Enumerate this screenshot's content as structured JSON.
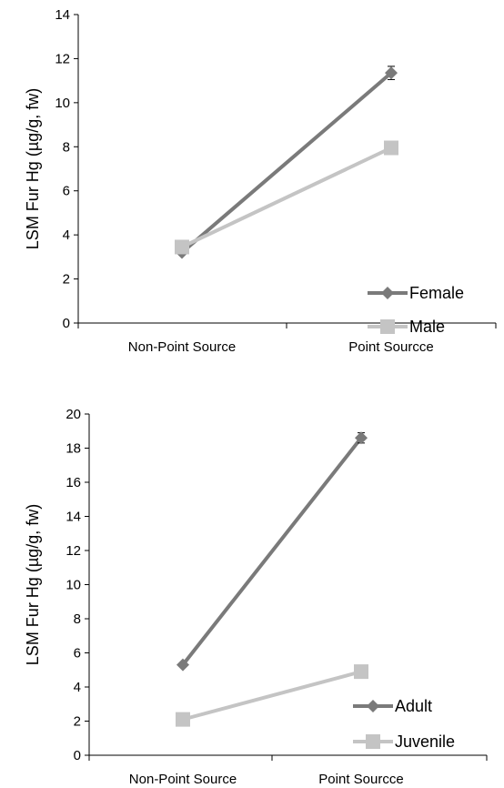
{
  "chart_data": [
    {
      "type": "line",
      "categories": [
        "Non-Point Source",
        "Point Sourcce"
      ],
      "ylabel": "LSM Fur Hg (µg/g, fw)",
      "ylim": [
        0,
        14
      ],
      "yticks": [
        "0",
        "2",
        "4",
        "6",
        "8",
        "10",
        "12",
        "14"
      ],
      "grid": false,
      "legend_position": "bottom-right",
      "series": [
        {
          "name": "Female",
          "values": [
            3.2,
            11.35
          ],
          "errors": [
            0.1,
            0.3
          ],
          "color": "#7a7a7a",
          "marker": "diamond"
        },
        {
          "name": "Male",
          "values": [
            3.45,
            7.95
          ],
          "errors": [
            0.1,
            0.25
          ],
          "color": "#c4c4c4",
          "marker": "square"
        }
      ]
    },
    {
      "type": "line",
      "categories": [
        "Non-Point Source",
        "Point Sourcce"
      ],
      "ylabel": "LSM Fur Hg (µg/g, fw)",
      "ylim": [
        0,
        20
      ],
      "yticks": [
        "0",
        "2",
        "4",
        "6",
        "8",
        "10",
        "12",
        "14",
        "16",
        "18",
        "20"
      ],
      "grid": false,
      "legend_position": "bottom-right",
      "series": [
        {
          "name": "Adult",
          "values": [
            5.3,
            18.6
          ],
          "errors": [
            0.1,
            0.3
          ],
          "color": "#7a7a7a",
          "marker": "diamond"
        },
        {
          "name": "Juvenile",
          "values": [
            2.1,
            4.9
          ],
          "errors": [
            0.1,
            0.1
          ],
          "color": "#c4c4c4",
          "marker": "square"
        }
      ]
    }
  ]
}
